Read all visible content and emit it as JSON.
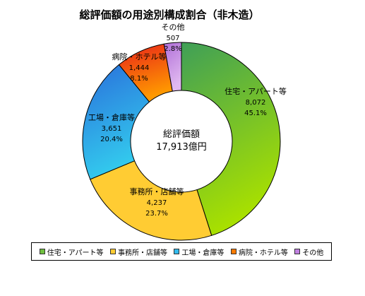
{
  "chart_data": {
    "type": "pie",
    "title": "総評価額の用途別構成割合（非木造）",
    "center_label": [
      "総評価額",
      "17,913億円"
    ],
    "slices": [
      {
        "name": "住宅・アパート等",
        "value_text": "8,072",
        "percent_text": "45.1%",
        "value": 8072,
        "percent": 45.1,
        "color_top": "#3f9f57",
        "color_bottom": "#a8e000"
      },
      {
        "name": "事務所・店舗等",
        "value_text": "4,237",
        "percent_text": "23.7%",
        "value": 4237,
        "percent": 23.7,
        "color_top": "#ffcc33",
        "color_bottom": "#ffcc33"
      },
      {
        "name": "工場・倉庫等",
        "value_text": "3,651",
        "percent_text": "20.4%",
        "value": 3651,
        "percent": 20.4,
        "color_top": "#2a6fdb",
        "color_bottom": "#33ccee"
      },
      {
        "name": "病院・ホテル等",
        "value_text": "1,444",
        "percent_text": "8.1%",
        "value": 1444,
        "percent": 8.1,
        "color_top": "#e8221a",
        "color_bottom": "#ff9900"
      },
      {
        "name": "その他",
        "value_text": "507",
        "percent_text": "2.8%",
        "value": 507,
        "percent": 2.8,
        "color_top": "#b06fd8",
        "color_bottom": "#e0b8f0"
      }
    ],
    "legend": {
      "placement": "bottom",
      "items": [
        "住宅・アパート等",
        "事務所・店舗等",
        "工場・倉庫等",
        "病院・ホテル等",
        "その他"
      ]
    },
    "legend_colors": [
      "#6fbf3f",
      "#ffcc33",
      "#33bbee",
      "#ff7a00",
      "#c080e0"
    ]
  }
}
